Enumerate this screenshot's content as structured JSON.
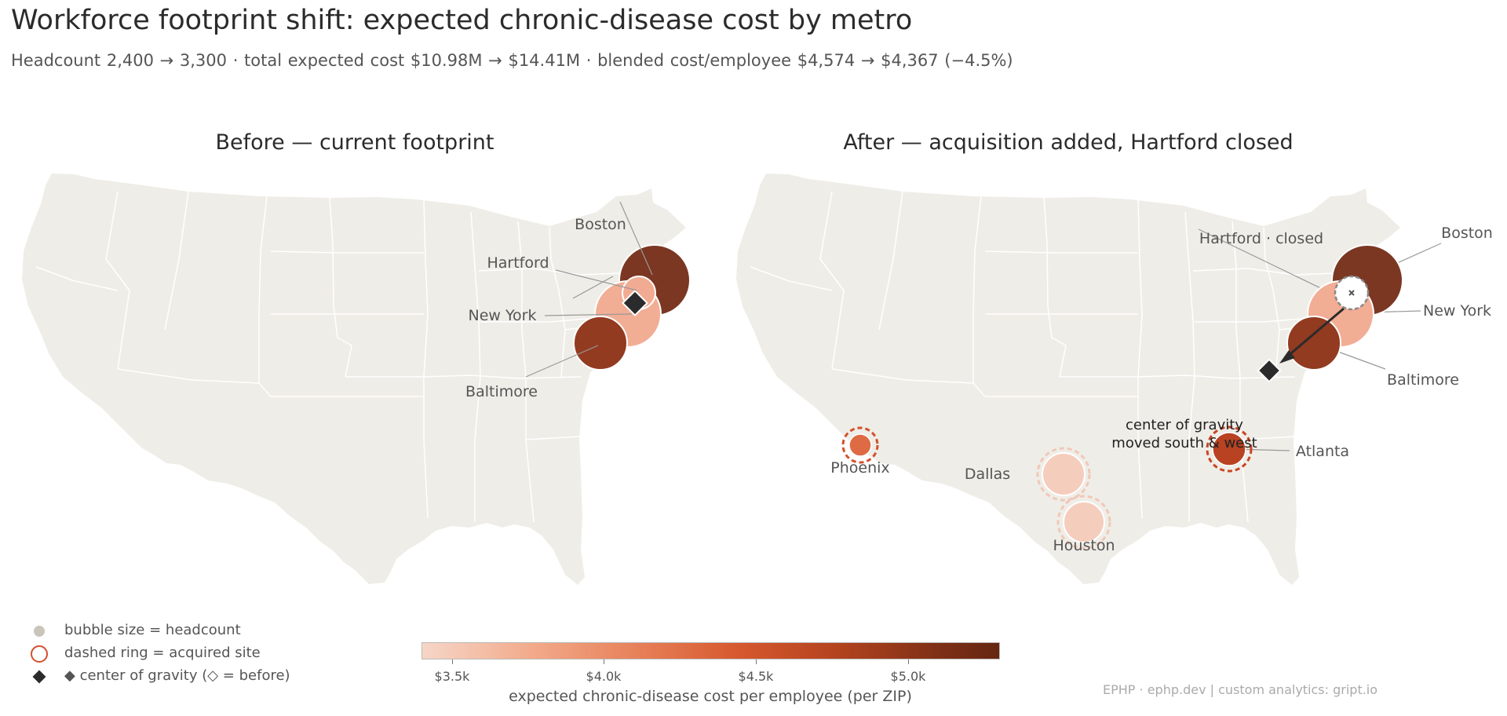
{
  "title": "Workforce footprint shift: expected chronic-disease cost by metro",
  "subtitle": "Headcount 2,400 → 3,300   ·   total expected cost $10.98M → $14.41M   ·   blended cost/employee $4,574 → $4,367 (−4.5%)",
  "panels": {
    "before": {
      "title": "Before — current footprint",
      "sites": [
        {
          "name": "Boston"
        },
        {
          "name": "Hartford"
        },
        {
          "name": "New York"
        },
        {
          "name": "Baltimore"
        }
      ]
    },
    "after": {
      "title": "After — acquisition added, Hartford closed",
      "sites": [
        {
          "name": "Hartford · closed"
        },
        {
          "name": "Boston"
        },
        {
          "name": "New York"
        },
        {
          "name": "Baltimore"
        },
        {
          "name": "Phoenix"
        },
        {
          "name": "Dallas"
        },
        {
          "name": "Atlanta"
        },
        {
          "name": "Houston"
        }
      ],
      "annotation_line1": "center of gravity",
      "annotation_line2": "moved south & west"
    }
  },
  "legend": {
    "size": "bubble size = headcount",
    "ring": "dashed ring = acquired site",
    "gravity": "◆ center of gravity (◇ = before)"
  },
  "colorbar": {
    "ticks": [
      "$3.5k",
      "$4.0k",
      "$4.5k",
      "$5.0k"
    ],
    "label": "expected chronic-disease cost per employee (per ZIP)"
  },
  "credit": "EPHP · ephp.dev  |  custom analytics: gript.io"
}
